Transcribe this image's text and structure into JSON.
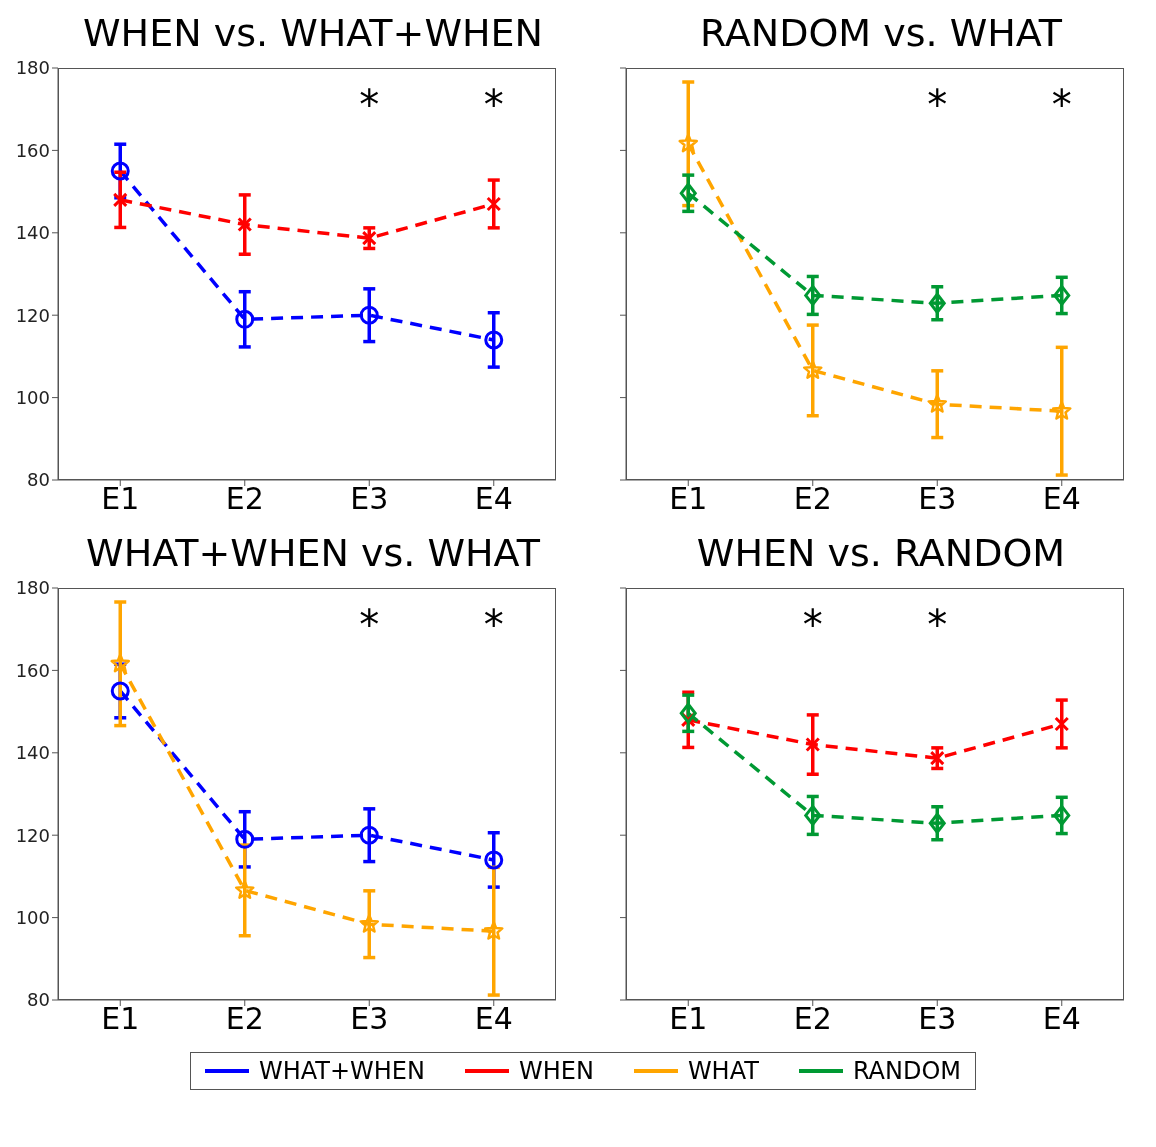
{
  "chart_data": [
    {
      "type": "line",
      "title": "WHEN vs. WHAT+WHEN",
      "categories": [
        "E1",
        "E2",
        "E3",
        "E4"
      ],
      "ylim": [
        80,
        180
      ],
      "yticks": [
        80,
        100,
        120,
        140,
        160,
        180
      ],
      "line_style": "dashed",
      "legend": "bottom",
      "grid": false,
      "series": [
        {
          "name": "WHAT+WHEN",
          "color": "#0000ff",
          "marker": "circle",
          "values": [
            155,
            119,
            120,
            114
          ],
          "errors": [
            6.5,
            6.7,
            6.4,
            6.6
          ]
        },
        {
          "name": "WHEN",
          "color": "#ff0000",
          "marker": "cross",
          "values": [
            148,
            142,
            138.7,
            147
          ],
          "errors": [
            6.7,
            7.2,
            2.5,
            5.8
          ]
        }
      ],
      "annotations": [
        "*",
        "*"
      ]
    },
    {
      "type": "line",
      "title": "RANDOM vs. WHAT",
      "categories": [
        "E1",
        "E2",
        "E3",
        "E4"
      ],
      "ylim": [
        80,
        180
      ],
      "yticks": [
        80,
        100,
        120,
        140,
        160,
        180
      ],
      "tick_labels": "x",
      "line_style": "dashed",
      "legend": "bottom",
      "grid": false,
      "series": [
        {
          "name": "WHAT",
          "color": "#ffa500",
          "marker": "star",
          "values": [
            161.6,
            106.6,
            98.4,
            96.7
          ],
          "errors": [
            15,
            11,
            8.1,
            15.5
          ]
        },
        {
          "name": "RANDOM",
          "color": "#009933",
          "marker": "diamond",
          "values": [
            149.6,
            124.8,
            122.9,
            124.8
          ],
          "errors": [
            4.4,
            4.6,
            4,
            4.4
          ]
        }
      ],
      "annotations": [
        "*",
        "*"
      ]
    },
    {
      "type": "line",
      "title": "WHAT+WHEN vs. WHAT",
      "categories": [
        "E1",
        "E2",
        "E3",
        "E4"
      ],
      "ylim": [
        80,
        180
      ],
      "yticks": [
        80,
        100,
        120,
        140,
        160,
        180
      ],
      "line_style": "dashed",
      "legend": "bottom",
      "grid": false,
      "series": [
        {
          "name": "WHAT+WHEN",
          "color": "#0000ff",
          "marker": "circle",
          "values": [
            155,
            119,
            120,
            114
          ],
          "errors": [
            6.5,
            6.7,
            6.4,
            6.6
          ]
        },
        {
          "name": "WHAT",
          "color": "#ffa500",
          "marker": "star",
          "values": [
            161.6,
            106.6,
            98.4,
            96.7
          ],
          "errors": [
            15,
            11,
            8.1,
            15.5
          ]
        }
      ],
      "annotations": [
        "*",
        "*"
      ]
    },
    {
      "type": "line",
      "title": "WHEN vs. RANDOM",
      "categories": [
        "E1",
        "E2",
        "E3",
        "E4"
      ],
      "ylim": [
        80,
        180
      ],
      "yticks": [
        80,
        100,
        120,
        140,
        160,
        180
      ],
      "tick_labels": "x",
      "line_style": "dashed",
      "legend": "bottom",
      "grid": false,
      "series": [
        {
          "name": "WHEN",
          "color": "#ff0000",
          "marker": "cross",
          "values": [
            148,
            142,
            138.7,
            147
          ],
          "errors": [
            6.7,
            7.2,
            2.5,
            5.8
          ]
        },
        {
          "name": "RANDOM",
          "color": "#009933",
          "marker": "diamond",
          "values": [
            149.6,
            124.8,
            122.9,
            124.8
          ],
          "errors": [
            4.4,
            4.6,
            4,
            4.4
          ]
        }
      ],
      "annotations": [
        "*",
        "*"
      ]
    }
  ]
}
